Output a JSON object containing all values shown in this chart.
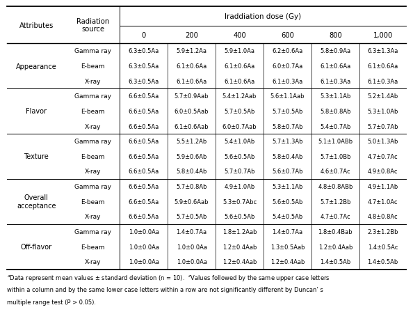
{
  "irradiation_header": "Iraddiation dose (Gy)",
  "col_headers_left": [
    "Attributes",
    "Radiation\nsource"
  ],
  "dose_labels": [
    "0",
    "200",
    "400",
    "600",
    "800",
    "1,000"
  ],
  "rows": [
    [
      "Appearance",
      "Gamma ray",
      "6.3±0.5Aa",
      "5.9±1.2Aa",
      "5.9±1.0Aa",
      "6.2±0.6Aa",
      "5.8±0.9Aa",
      "6.3±1.3Aa"
    ],
    [
      "",
      "E-beam",
      "6.3±0.5Aa",
      "6.1±0.6Aa",
      "6.1±0.6Aa",
      "6.0±0.7Aa",
      "6.1±0.6Aa",
      "6.1±0.6Aa"
    ],
    [
      "",
      "X-ray",
      "6.3±0.5Aa",
      "6.1±0.6Aa",
      "6.1±0.6Aa",
      "6.1±0.3Aa",
      "6.1±0.3Aa",
      "6.1±0.3Aa"
    ],
    [
      "Flavor",
      "Gamma ray",
      "6.6±0.5Aa",
      "5.7±0.9Aab",
      "5.4±1.2Aab",
      "5.6±1.1Aab",
      "5.3±1.1Ab",
      "5.2±1.4Ab"
    ],
    [
      "",
      "E-beam",
      "6.6±0.5Aa",
      "6.0±0.5Aab",
      "5.7±0.5Ab",
      "5.7±0.5Ab",
      "5.8±0.8Ab",
      "5.3±1.0Ab"
    ],
    [
      "",
      "X-ray",
      "6.6±0.5Aa",
      "6.1±0.6Aab",
      "6.0±0.7Aab",
      "5.8±0.7Ab",
      "5.4±0.7Ab",
      "5.7±0.7Ab"
    ],
    [
      "Texture",
      "Gamma ray",
      "6.6±0.5Aa",
      "5.5±1.2Ab",
      "5.4±1.0Ab",
      "5.7±1.3Ab",
      "5.1±1.0ABb",
      "5.0±1.3Ab"
    ],
    [
      "",
      "E-beam",
      "6.6±0.5Aa",
      "5.9±0.6Ab",
      "5.6±0.5Ab",
      "5.8±0.4Ab",
      "5.7±1.0Bb",
      "4.7±0.7Ac"
    ],
    [
      "",
      "X-ray",
      "6.6±0.5Aa",
      "5.8±0.4Ab",
      "5.7±0.7Ab",
      "5.6±0.7Ab",
      "4.6±0.7Ac",
      "4.9±0.8Ac"
    ],
    [
      "Overall\nacceptance",
      "Gamma ray",
      "6.6±0.5Aa",
      "5.7±0.8Ab",
      "4.9±1.0Ab",
      "5.3±1.1Ab",
      "4.8±0.8ABb",
      "4.9±1.1Ab"
    ],
    [
      "",
      "E-beam",
      "6.6±0.5Aa",
      "5.9±0.6Aab",
      "5.3±0.7Abc",
      "5.6±0.5Ab",
      "5.7±1.2Bb",
      "4.7±1.0Ac"
    ],
    [
      "",
      "X-ray",
      "6.6±0.5Aa",
      "5.7±0.5Ab",
      "5.6±0.5Ab",
      "5.4±0.5Ab",
      "4.7±0.7Ac",
      "4.8±0.8Ac"
    ],
    [
      "Off-flavor",
      "Gamma ray",
      "1.0±0.0Aa",
      "1.4±0.7Aa",
      "1.8±1.2Aab",
      "1.4±0.7Aa",
      "1.8±0.4Bab",
      "2.3±1.2Bb"
    ],
    [
      "",
      "E-beam",
      "1.0±0.0Aa",
      "1.0±0.0Aa",
      "1.2±0.4Aab",
      "1.3±0.5Aab",
      "1.2±0.4Aab",
      "1.4±0.5Ac"
    ],
    [
      "",
      "X-ray",
      "1.0±0.0Aa",
      "1.0±0.0Aa",
      "1.2±0.4Aab",
      "1.2±0.4Aab",
      "1.4±0.5Ab",
      "1.4±0.5Ab"
    ]
  ],
  "attribute_groups": [
    {
      "label": "Appearance",
      "rows": [
        0,
        1,
        2
      ]
    },
    {
      "label": "Flavor",
      "rows": [
        3,
        4,
        5
      ]
    },
    {
      "label": "Texture",
      "rows": [
        6,
        7,
        8
      ]
    },
    {
      "label": "Overall\nacceptance",
      "rows": [
        9,
        10,
        11
      ]
    },
    {
      "label": "Off-flavor",
      "rows": [
        12,
        13,
        14
      ]
    }
  ],
  "footnote_line1": "*Data represent mean values ± standard deviation (n = 10). *Values followed by the same upper case letters",
  "footnote_line2": "within a column and by the same lower case letters within a row are not significantly different by Duncan’ s",
  "footnote_line3": "multiple range test (P > 0.05).",
  "footnote_superscript_a": "a",
  "footnote_superscript_z": "z"
}
